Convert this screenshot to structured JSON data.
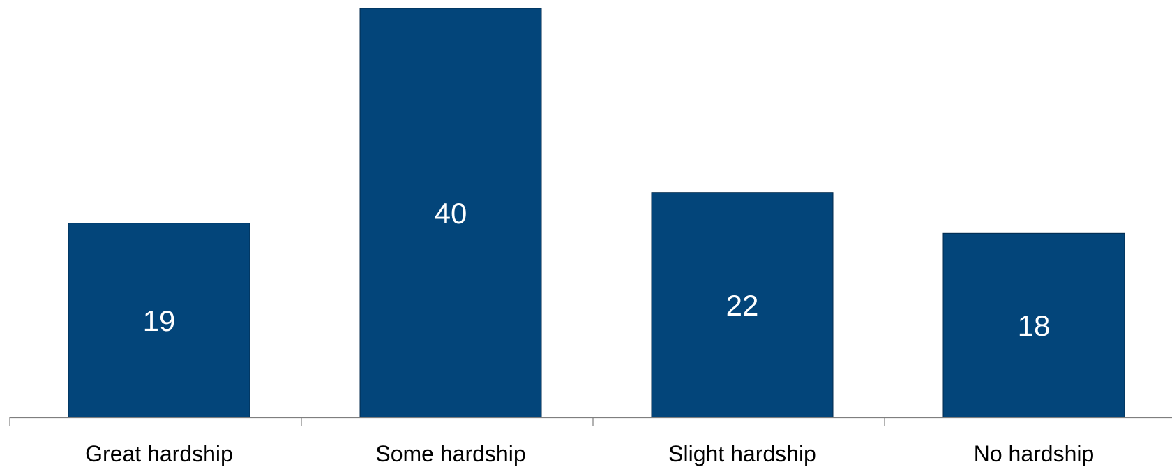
{
  "chart_data": {
    "type": "bar",
    "categories": [
      "Great hardship",
      "Some hardship",
      "Slight hardship",
      "No hardship"
    ],
    "values": [
      19,
      40,
      22,
      18
    ],
    "data_labels": [
      "19",
      "40",
      "22",
      "18"
    ],
    "title": "",
    "xlabel": "",
    "ylabel": "",
    "ylim": [
      0,
      40
    ],
    "grid": false,
    "legend": "none",
    "colors": {
      "bar": "#03457a",
      "data_label": "#ffffff",
      "axis": "#7f7f7f"
    }
  }
}
